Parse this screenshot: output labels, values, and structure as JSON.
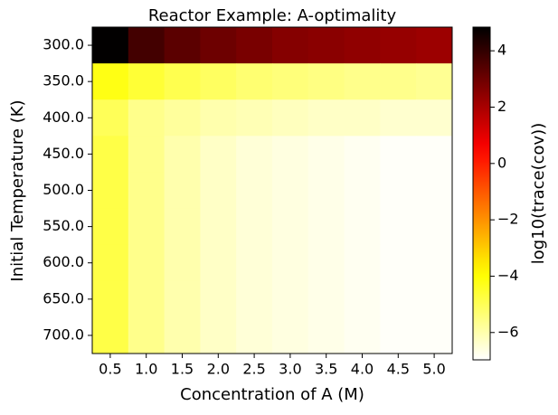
{
  "chart_data": {
    "type": "heatmap",
    "title": "Reactor Example: A-optimality",
    "x_label": "Concentration of A (M)",
    "y_label": "Initial Temperature (K)",
    "colorbar_label": "log10(trace(cov))",
    "colormap": "hot_r",
    "x_categories": [
      "0.5",
      "1.0",
      "1.5",
      "2.0",
      "2.5",
      "3.0",
      "3.5",
      "4.0",
      "4.5",
      "5.0"
    ],
    "y_categories": [
      "300.0",
      "350.0",
      "400.0",
      "450.0",
      "500.0",
      "550.0",
      "600.0",
      "650.0",
      "700.0"
    ],
    "values": [
      [
        4.8,
        3.7,
        3.3,
        3.0,
        2.8,
        2.6,
        2.5,
        2.4,
        2.3,
        2.2
      ],
      [
        -4.2,
        -4.6,
        -4.9,
        -5.1,
        -5.3,
        -5.4,
        -5.5,
        -5.6,
        -5.6,
        -5.7
      ],
      [
        -5.0,
        -5.6,
        -5.8,
        -6.0,
        -6.1,
        -6.2,
        -6.3,
        -6.3,
        -6.4,
        -6.4
      ],
      [
        -4.8,
        -5.6,
        -6.0,
        -6.3,
        -6.5,
        -6.6,
        -6.7,
        -6.8,
        -6.9,
        -6.9
      ],
      [
        -4.8,
        -5.6,
        -6.0,
        -6.3,
        -6.5,
        -6.6,
        -6.7,
        -6.8,
        -6.9,
        -6.9
      ],
      [
        -4.8,
        -5.6,
        -6.0,
        -6.3,
        -6.5,
        -6.6,
        -6.7,
        -6.8,
        -6.9,
        -6.9
      ],
      [
        -4.8,
        -5.6,
        -6.0,
        -6.3,
        -6.5,
        -6.6,
        -6.7,
        -6.8,
        -6.9,
        -6.9
      ],
      [
        -4.8,
        -5.6,
        -6.0,
        -6.3,
        -6.5,
        -6.6,
        -6.7,
        -6.8,
        -6.9,
        -6.9
      ],
      [
        -4.8,
        -5.6,
        -6.0,
        -6.3,
        -6.5,
        -6.6,
        -6.7,
        -6.8,
        -6.9,
        -6.9
      ]
    ],
    "clim": [
      -6.97,
      4.84
    ],
    "cticks": [
      {
        "value": -6,
        "label": "−6"
      },
      {
        "value": -4,
        "label": "−4"
      },
      {
        "value": -2,
        "label": "−2"
      },
      0,
      2,
      4
    ]
  }
}
